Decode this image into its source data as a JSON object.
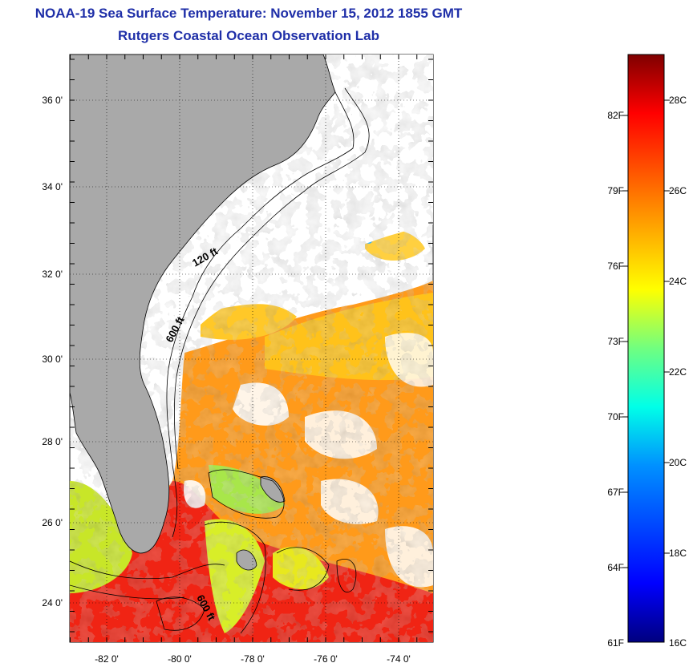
{
  "header": {
    "title": "NOAA-19 Sea Surface Temperature:  November 15, 2012 1855 GMT",
    "subtitle": "Rutgers Coastal Ocean Observation Lab"
  },
  "map": {
    "lat_labels": [
      "36 0'",
      "34 0'",
      "32 0'",
      "30 0'",
      "28 0'",
      "26 0'",
      "24 0'"
    ],
    "lat_values": [
      36,
      34,
      32,
      30,
      28,
      26,
      24
    ],
    "lon_labels": [
      "-82 0'",
      "-80 0'",
      "-78 0'",
      "-76 0'",
      "-74 0'"
    ],
    "lon_values": [
      -82,
      -80,
      -78,
      -76,
      -74
    ],
    "lon_range": [
      -83,
      -73
    ],
    "lat_range": [
      23,
      37
    ],
    "contours": [
      "120 ft",
      "600 ft",
      "600 ft"
    ],
    "land_color": "#a9a9a9",
    "cloud_color": "#ffffff"
  },
  "colorbar": {
    "fahrenheit_labels": [
      "82F",
      "79F",
      "76F",
      "73F",
      "70F",
      "67F",
      "64F",
      "61F"
    ],
    "celsius_labels": [
      "28C",
      "26C",
      "24C",
      "22C",
      "20C",
      "18C",
      "16C"
    ],
    "range_c": [
      16,
      29
    ],
    "colors": [
      "#00007f",
      "#0000ff",
      "#007fff",
      "#00ffff",
      "#7fff7f",
      "#ffff00",
      "#ff7f00",
      "#ff0000",
      "#7f0000"
    ]
  }
}
